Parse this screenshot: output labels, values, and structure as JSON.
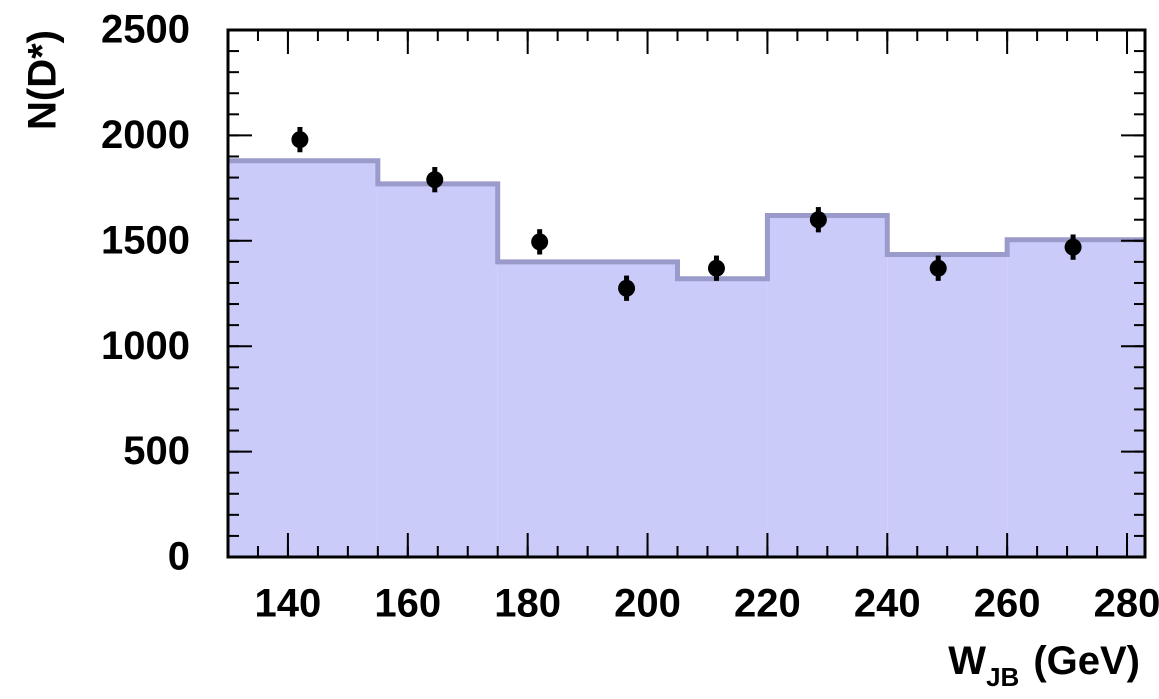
{
  "chart_data": {
    "type": "histogram",
    "y_label": "N(D*)",
    "x_label": [
      "W",
      "JB",
      "(GeV)"
    ],
    "bins": [
      130,
      155,
      175,
      205,
      220,
      240,
      260,
      283
    ],
    "values": [
      1880,
      1770,
      1400,
      1320,
      1620,
      1435,
      1505
    ],
    "color": "#cbcbf9",
    "edge_color": "#9b9bcb",
    "points": {
      "x": [
        142,
        164.5,
        182,
        196.5,
        211.5,
        228.5,
        248.5,
        271
      ],
      "values": [
        1980,
        1790,
        1495,
        1275,
        1370,
        1600,
        1370,
        1470
      ],
      "errors": [
        60,
        60,
        60,
        60,
        60,
        60,
        60,
        60
      ],
      "color": "#000000"
    },
    "xlim": [
      130,
      283
    ],
    "ylim": [
      0,
      2500
    ],
    "xticks": [
      140,
      160,
      180,
      200,
      220,
      240,
      260,
      280
    ],
    "yticks": [
      0,
      500,
      1000,
      1500,
      2000,
      2500
    ],
    "xminorticks": [
      130,
      135,
      140,
      145,
      150,
      155,
      160,
      165,
      170,
      175,
      180,
      185,
      190,
      195,
      200,
      205,
      210,
      215,
      220,
      225,
      230,
      235,
      240,
      245,
      250,
      255,
      260,
      265,
      270,
      275,
      280
    ],
    "yminorticks": [
      0,
      100,
      200,
      300,
      400,
      500,
      600,
      700,
      800,
      900,
      1000,
      1100,
      1200,
      1300,
      1400,
      1500,
      1600,
      1700,
      1800,
      1900,
      2000,
      2100,
      2200,
      2300,
      2400,
      2500
    ]
  }
}
